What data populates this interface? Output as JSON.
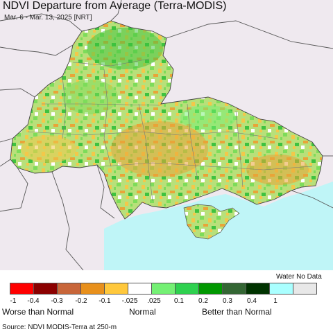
{
  "header": {
    "title": "NDVI Departure from Average (Terra-MODIS)",
    "subtitle": "Mar. 6 - Mar. 13, 2025 [NRT]"
  },
  "map": {
    "colors": {
      "land_outside": "#efe9ef",
      "sea": "#bff5f7",
      "border": "#555555",
      "vegetation_mix": [
        "#7ddc5a",
        "#b8e07a",
        "#f3c84a",
        "#e9a438",
        "#ffffff",
        "#3fc23f"
      ]
    }
  },
  "legend": {
    "colors": [
      "#ff0000",
      "#8b0000",
      "#c8663a",
      "#e8901c",
      "#ffc83c",
      "#ffffff",
      "#74f074",
      "#2ed14f",
      "#009800",
      "#336633",
      "#003300",
      "#aaffff",
      "#e8e8e8"
    ],
    "ticks": [
      "-1",
      "-0.4",
      "-0.3",
      "-0.2",
      "-0.1",
      "-.025",
      ".025",
      "0.1",
      "0.2",
      "0.3",
      "0.4",
      "1"
    ],
    "categories": {
      "worse": "Worse than Normal",
      "normal": "Normal",
      "better": "Better than Normal"
    },
    "water_no_data": "Water No Data"
  },
  "footer": {
    "source": "Source: NDVI MODIS-Terra at 250-m"
  }
}
